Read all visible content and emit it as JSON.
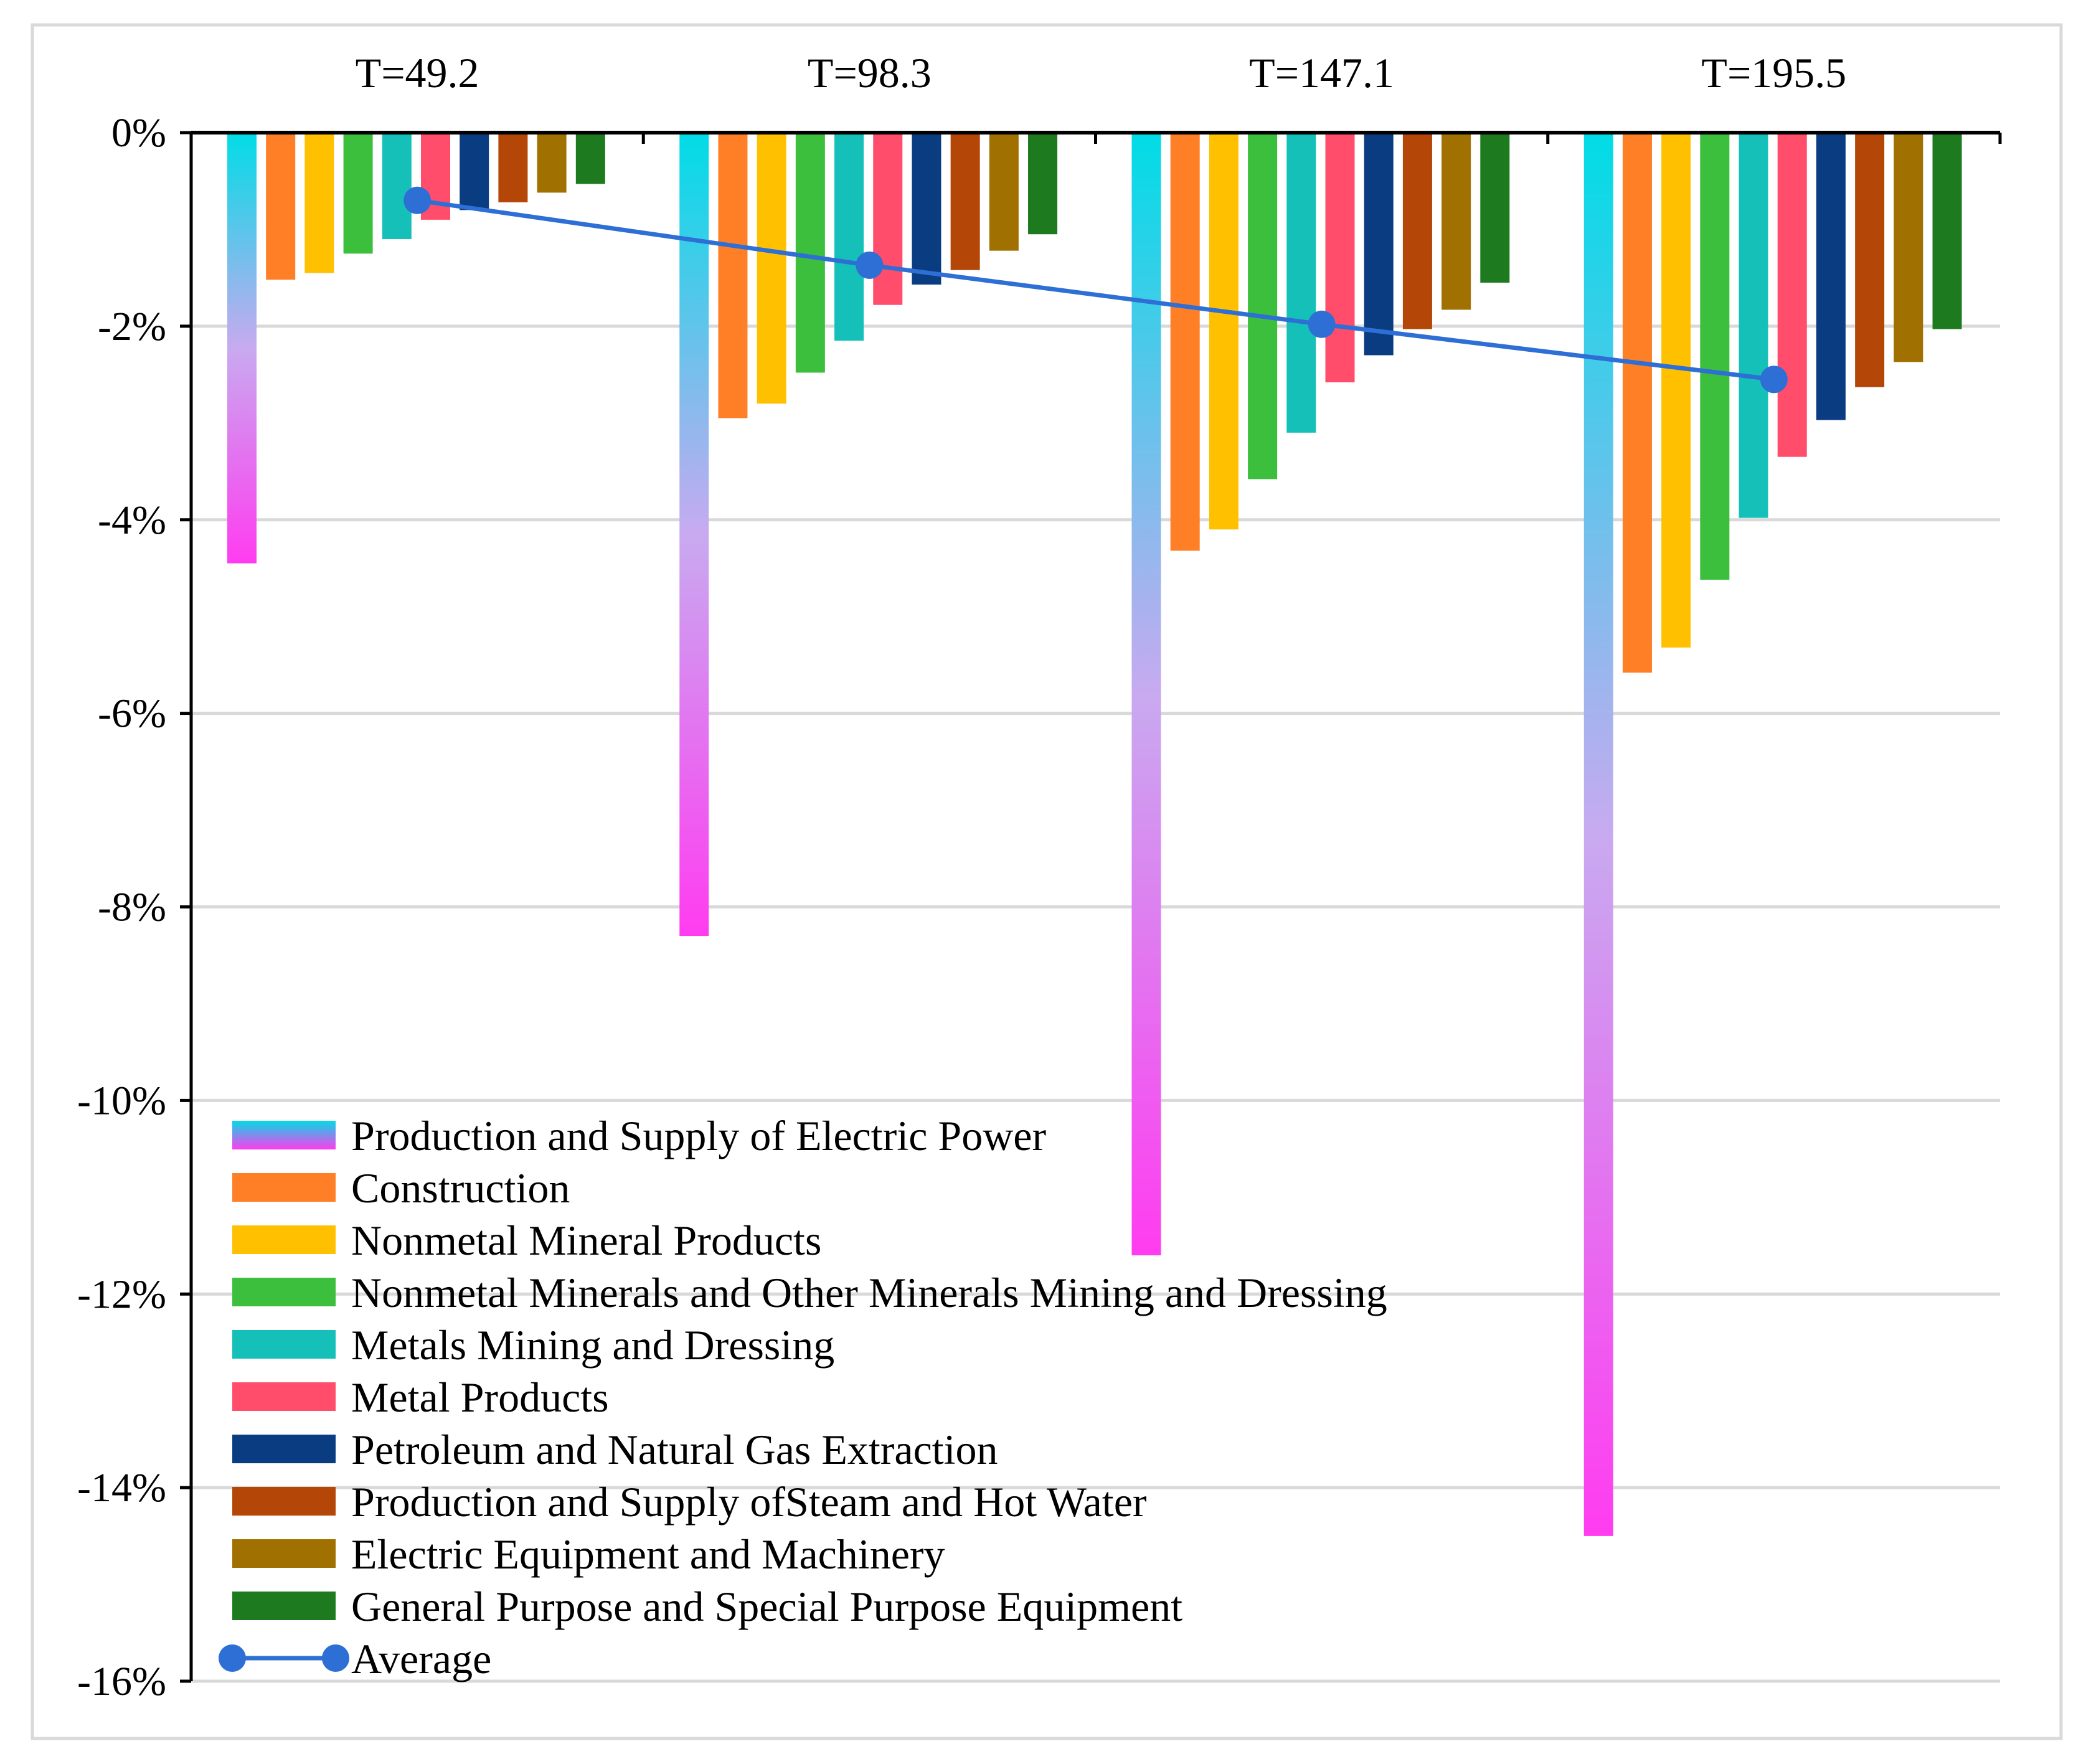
{
  "chart_data": {
    "type": "bar",
    "title": "",
    "xlabel": "",
    "ylabel": "",
    "ylim": [
      -16,
      0
    ],
    "y_ticks": [
      0,
      -2,
      -4,
      -6,
      -8,
      -10,
      -12,
      -14,
      -16
    ],
    "y_tick_labels": [
      "0%",
      "-2%",
      "-4%",
      "-6%",
      "-8%",
      "-10%",
      "-12%",
      "-14%",
      "-16%"
    ],
    "grid": true,
    "legend_position": "bottom-left",
    "categories": [
      "T=49.2",
      "T=98.3",
      "T=147.1",
      "T=195.5"
    ],
    "series": [
      {
        "name": "Production and Supply of Electric Power",
        "color": "#00dce6",
        "color_end": "#ff3cf0",
        "gradient": true,
        "values": [
          -4.45,
          -8.3,
          -11.6,
          -14.5
        ]
      },
      {
        "name": "Construction",
        "color": "#ff7f27",
        "values": [
          -1.52,
          -2.95,
          -4.32,
          -5.58
        ]
      },
      {
        "name": "Nonmetal Mineral Products",
        "color": "#ffc000",
        "values": [
          -1.45,
          -2.8,
          -4.1,
          -5.32
        ]
      },
      {
        "name": "Nonmetal Minerals and Other Minerals Mining and Dressing",
        "color": "#3cbf3c",
        "values": [
          -1.25,
          -2.48,
          -3.58,
          -4.62
        ]
      },
      {
        "name": "Metals Mining and Dressing",
        "color": "#14c0b8",
        "values": [
          -1.1,
          -2.15,
          -3.1,
          -3.98
        ]
      },
      {
        "name": "Metal Products",
        "color": "#ff4d6b",
        "values": [
          -0.9,
          -1.78,
          -2.58,
          -3.35
        ]
      },
      {
        "name": "Petroleum and Natural Gas Extraction",
        "color": "#0a3c82",
        "values": [
          -0.8,
          -1.57,
          -2.3,
          -2.97
        ]
      },
      {
        "name": "Production and Supply ofSteam and Hot Water",
        "color": "#b44608",
        "values": [
          -0.72,
          -1.42,
          -2.03,
          -2.63
        ]
      },
      {
        "name": "Electric Equipment and Machinery",
        "color": "#a07000",
        "values": [
          -0.62,
          -1.22,
          -1.83,
          -2.37
        ]
      },
      {
        "name": "General Purpose and Special Purpose Equipment",
        "color": "#1e7a1e",
        "values": [
          -0.53,
          -1.05,
          -1.55,
          -2.03
        ]
      }
    ],
    "line_series": {
      "name": "Average",
      "color": "#2e6fd6",
      "values": [
        -0.7,
        -1.37,
        -1.98,
        -2.55
      ]
    }
  }
}
